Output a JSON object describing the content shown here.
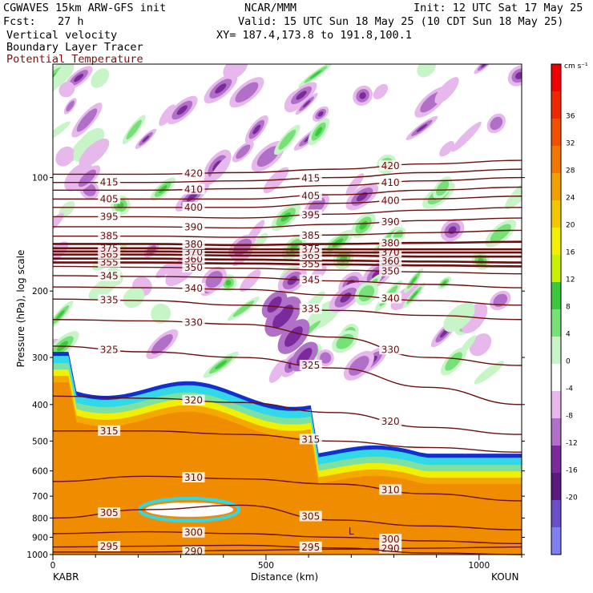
{
  "header": {
    "model": "CGWAVES 15km ARW-GFS init",
    "center": "NCAR/MMM",
    "init": "Init: 12 UTC Sat 17 May 25",
    "fcst_label": "Fcst:",
    "fcst_value": "27 h",
    "valid": "Valid: 15 UTC Sun 18 May 25 (10 CDT Sun 18 May 25)",
    "field1": "Vertical velocity",
    "field2": "Boundary Layer Tracer",
    "field3": "Potential Temperature",
    "xy": "XY= 187.4,173.8 to 191.8,100.1"
  },
  "colors": {
    "contour": "#6b0f0f",
    "purple_dark": "#7a2a9a",
    "purple_mid": "#b070c8",
    "purple_light": "#e6b8ec",
    "green_dark": "#3cc83c",
    "green_mid": "#78e078",
    "green_light": "#c8f5c8",
    "orange": "#f08c00",
    "yellow": "#f0f000",
    "cyan": "#30d8e8",
    "blue": "#1030d0"
  },
  "chart_data": {
    "type": "heatmap",
    "xlabel": "Distance (km)",
    "ylabel": "Pressure (hPa), log scale",
    "x_ticks": [
      0,
      500,
      1000
    ],
    "xlim": [
      0,
      1100
    ],
    "y_ticks": [
      100,
      200,
      300,
      400,
      500,
      600,
      700,
      800,
      900,
      1000
    ],
    "ylim": [
      1000,
      50
    ],
    "y_scale": "log",
    "left_endpoint": "KABR",
    "right_endpoint": "KOUN",
    "colorbar": {
      "unit": "cm s⁻¹",
      "ticks": [
        36,
        32,
        28,
        24,
        20,
        16,
        12,
        8,
        4,
        0,
        -4,
        -8,
        -12,
        -16,
        -20
      ],
      "colors": [
        "#f00000",
        "#f02800",
        "#f05000",
        "#f07800",
        "#f0a000",
        "#f0c800",
        "#f0f000",
        "#c8f000",
        "#3cc83c",
        "#78e078",
        "#c8f5c8",
        "#ffffff",
        "#e6b8ec",
        "#b070c8",
        "#7a2a9a",
        "#5a1a80",
        "#6a50c8",
        "#8080f0"
      ]
    },
    "theta_contours": [
      {
        "value": 290,
        "label": "290",
        "p": [
          985,
          985,
          975,
          968,
          962,
          955
        ]
      },
      {
        "value": 295,
        "label": "295",
        "p": [
          955,
          950,
          945,
          960,
          990,
          1000
        ]
      },
      {
        "value": 300,
        "label": "300",
        "p": [
          880,
          870,
          880,
          900,
          920,
          935
        ]
      },
      {
        "value": 305,
        "label": "305",
        "p": [
          800,
          760,
          740,
          810,
          840,
          860
        ]
      },
      {
        "value": 310,
        "label": "310",
        "p": [
          640,
          620,
          630,
          650,
          690,
          720
        ]
      },
      {
        "value": 315,
        "label": "315",
        "p": [
          470,
          470,
          480,
          500,
          520,
          535
        ]
      },
      {
        "value": 320,
        "label": "320",
        "p": [
          380,
          385,
          395,
          420,
          460,
          480
        ]
      },
      {
        "value": 325,
        "label": "325",
        "p": [
          280,
          290,
          300,
          320,
          360,
          400
        ]
      },
      {
        "value": 330,
        "label": "330",
        "p": [
          238,
          240,
          245,
          265,
          300,
          315
        ]
      },
      {
        "value": 335,
        "label": "335",
        "p": [
          210,
          212,
          218,
          225,
          232,
          238
        ]
      },
      {
        "value": 340,
        "label": "340",
        "p": [
          195,
          196,
          198,
          205,
          212,
          218
        ]
      },
      {
        "value": 345,
        "label": "345",
        "p": [
          182,
          183,
          184,
          188,
          192,
          196
        ]
      },
      {
        "value": 350,
        "label": "350",
        "p": [
          172,
          173,
          174,
          176,
          178,
          180
        ]
      },
      {
        "value": 355,
        "label": "355",
        "p": [
          168,
          168,
          169,
          170,
          171,
          172
        ]
      },
      {
        "value": 360,
        "label": "360",
        "p": [
          164,
          164,
          165,
          166,
          167,
          168
        ]
      },
      {
        "value": 365,
        "label": "365",
        "p": [
          160,
          160,
          161,
          161,
          162,
          162
        ]
      },
      {
        "value": 370,
        "label": "370",
        "p": [
          157,
          157,
          158,
          158,
          158,
          158
        ]
      },
      {
        "value": 375,
        "label": "375",
        "p": [
          154,
          154,
          155,
          155,
          155,
          155
        ]
      },
      {
        "value": 380,
        "label": "380",
        "p": [
          150,
          150,
          151,
          150,
          149,
          148
        ]
      },
      {
        "value": 385,
        "label": "385",
        "p": [
          143,
          143,
          144,
          142,
          140,
          138
        ]
      },
      {
        "value": 390,
        "label": "390",
        "p": [
          135,
          135,
          136,
          133,
          130,
          128
        ]
      },
      {
        "value": 395,
        "label": "395",
        "p": [
          127,
          127,
          128,
          125,
          122,
          120
        ]
      },
      {
        "value": 400,
        "label": "400",
        "p": [
          120,
          120,
          120,
          117,
          114,
          112
        ]
      },
      {
        "value": 405,
        "label": "405",
        "p": [
          114,
          114,
          114,
          111,
          108,
          106
        ]
      },
      {
        "value": 410,
        "label": "410",
        "p": [
          108,
          108,
          107,
          105,
          102,
          100
        ]
      },
      {
        "value": 415,
        "label": "415",
        "p": [
          103,
          103,
          102,
          100,
          97,
          95
        ]
      },
      {
        "value": 420,
        "label": "420",
        "p": [
          98,
          98,
          97,
          95,
          92,
          90
        ]
      }
    ],
    "contour_x": [
      0,
      220,
      440,
      660,
      880,
      1100
    ],
    "annotations": [
      "L",
      "150",
      "150"
    ]
  }
}
